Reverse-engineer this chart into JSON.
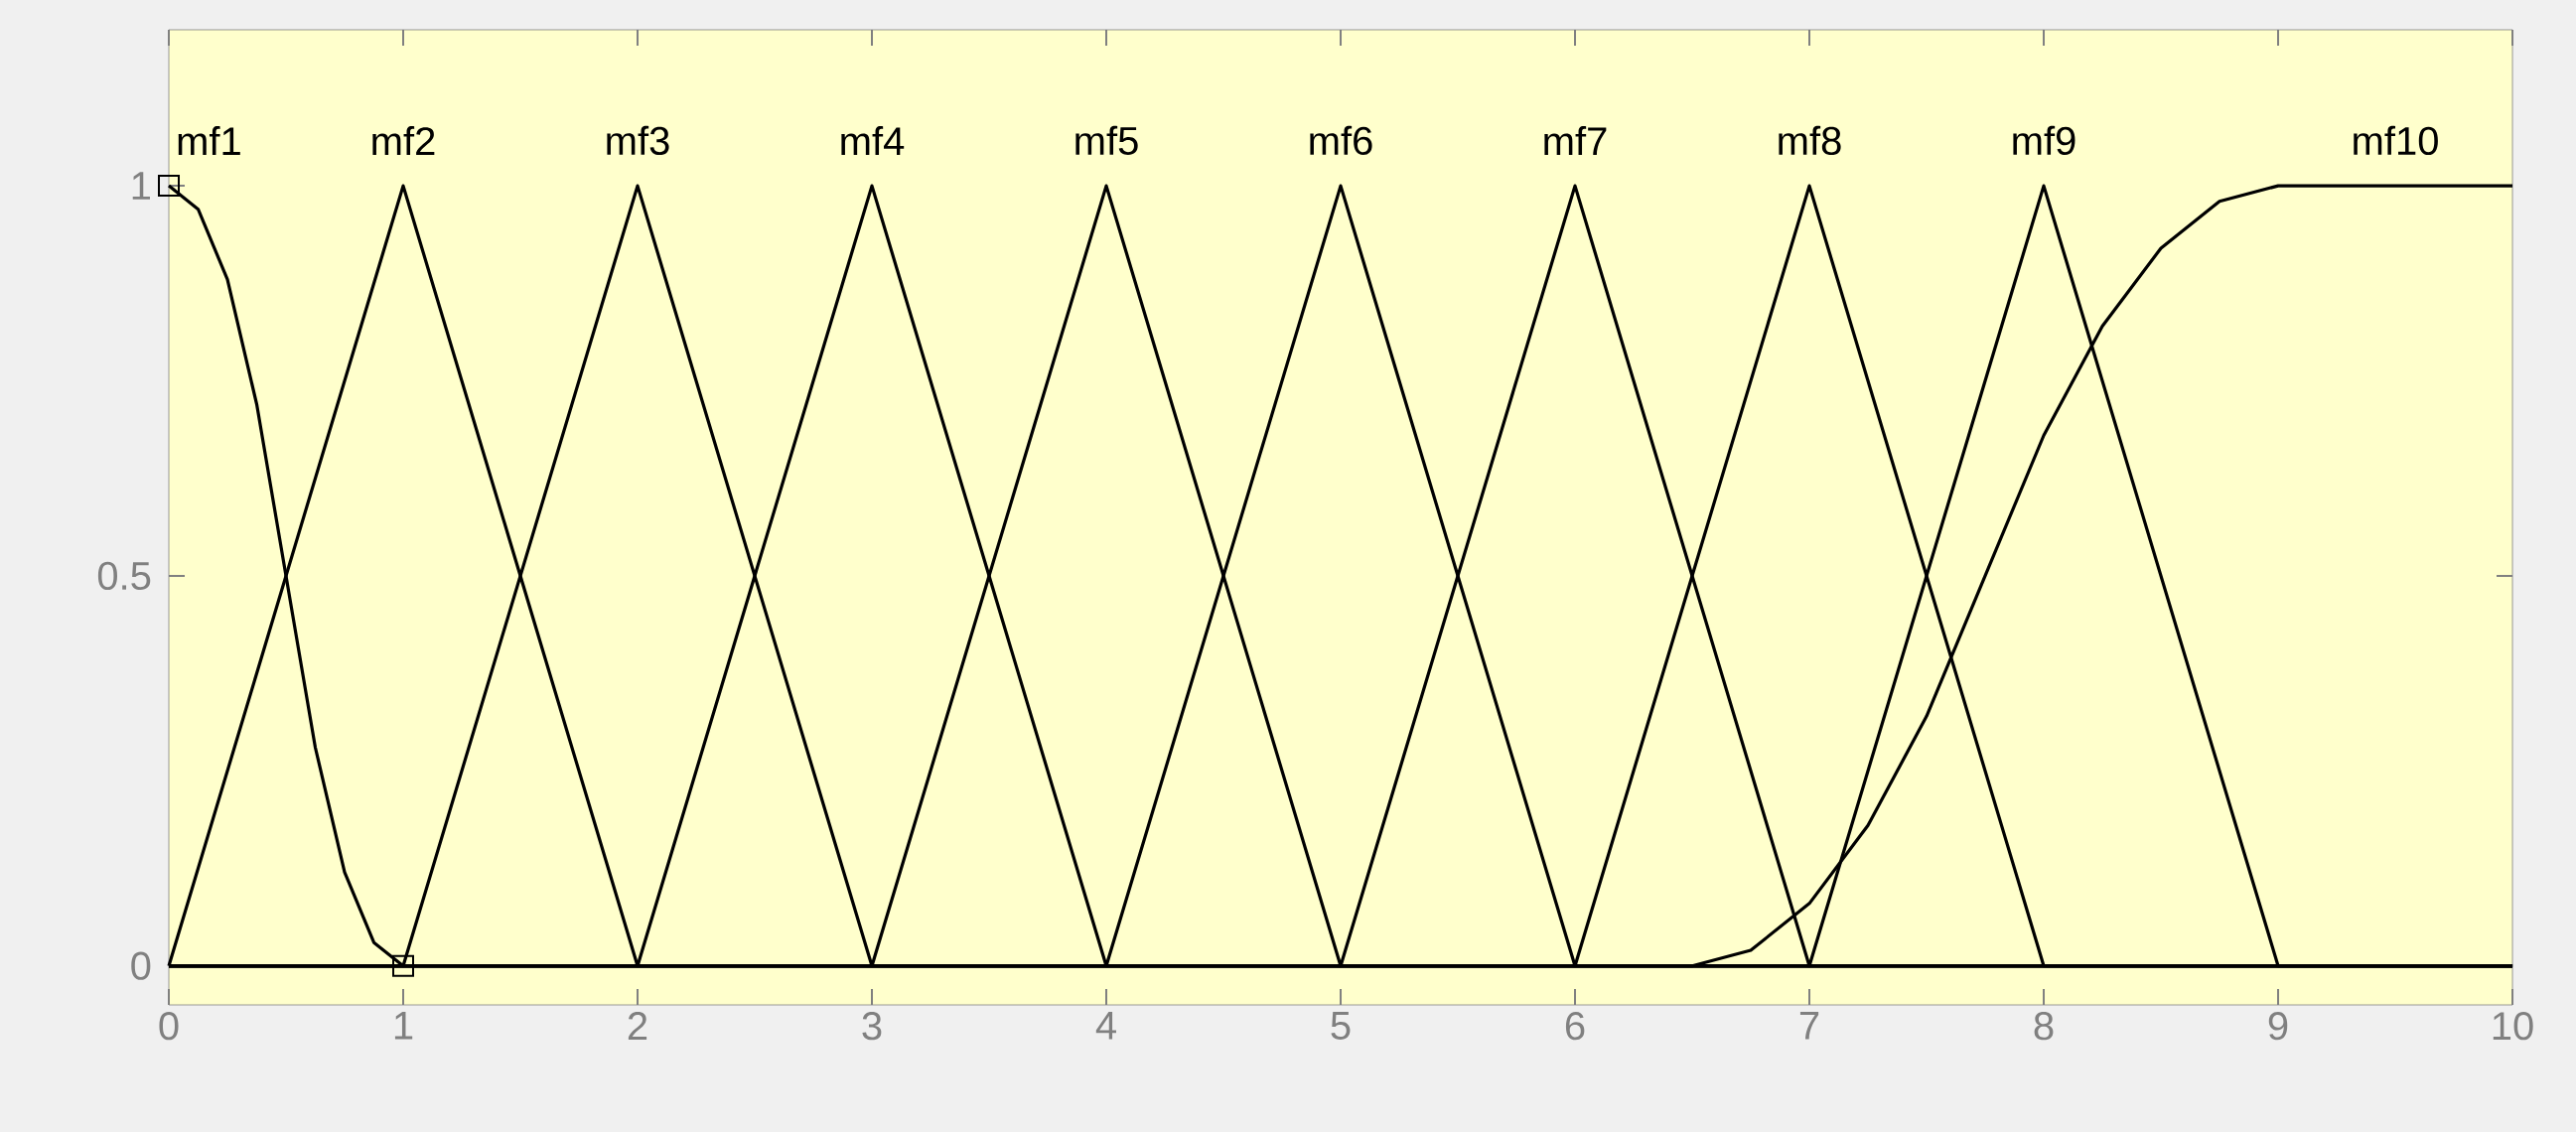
{
  "chart_data": {
    "type": "line",
    "xlim": [
      0,
      10
    ],
    "ylim": [
      -0.05,
      1.2
    ],
    "xticks": [
      0,
      1,
      2,
      3,
      4,
      5,
      6,
      7,
      8,
      9,
      10
    ],
    "yticks": [
      0,
      0.5,
      1
    ],
    "grid": false,
    "marker": "none",
    "line_style": "solid",
    "series": [
      {
        "color": "#000000",
        "x": [
          0,
          0.125,
          0.25,
          0.375,
          0.5,
          0.625,
          0.75,
          0.875,
          1,
          10
        ],
        "values": [
          1,
          0.97,
          0.88,
          0.72,
          0.5,
          0.28,
          0.12,
          0.03,
          0,
          0
        ]
      },
      {
        "color": "#000000",
        "x": [
          0,
          1,
          2,
          10
        ],
        "values": [
          0,
          1,
          0,
          0
        ]
      },
      {
        "color": "#000000",
        "x": [
          0,
          1,
          2,
          3,
          10
        ],
        "values": [
          0,
          0,
          1,
          0,
          0
        ]
      },
      {
        "color": "#000000",
        "x": [
          0,
          2,
          3,
          4,
          10
        ],
        "values": [
          0,
          0,
          1,
          0,
          0
        ]
      },
      {
        "color": "#000000",
        "x": [
          0,
          3,
          4,
          5,
          10
        ],
        "values": [
          0,
          0,
          1,
          0,
          0
        ]
      },
      {
        "color": "#000000",
        "x": [
          0,
          4,
          5,
          6,
          10
        ],
        "values": [
          0,
          0,
          1,
          0,
          0
        ]
      },
      {
        "color": "#000000",
        "x": [
          0,
          5,
          6,
          7,
          10
        ],
        "values": [
          0,
          0,
          1,
          0,
          0
        ]
      },
      {
        "color": "#000000",
        "x": [
          0,
          6,
          7,
          8,
          10
        ],
        "values": [
          0,
          0,
          1,
          0,
          0
        ]
      },
      {
        "color": "#000000",
        "x": [
          0,
          7,
          8,
          9,
          10
        ],
        "values": [
          0,
          0,
          1,
          0,
          0
        ]
      },
      {
        "color": "#000000",
        "x": [
          0,
          6.5,
          6.75,
          7,
          7.25,
          7.5,
          7.75,
          8,
          8.25,
          8.5,
          8.75,
          9,
          10
        ],
        "values": [
          0,
          0,
          0.02,
          0.08,
          0.18,
          0.32,
          0.5,
          0.68,
          0.82,
          0.92,
          0.98,
          1,
          1
        ]
      },
      {
        "type": "scatter",
        "marker": "square",
        "color": "#000000",
        "x": [
          0,
          1
        ],
        "values": [
          1,
          0
        ]
      }
    ],
    "annotations": [
      "mf1",
      "mf2",
      "mf3",
      "mf4",
      "mf5",
      "mf6",
      "mf7",
      "mf8",
      "mf9",
      "mf10"
    ]
  }
}
